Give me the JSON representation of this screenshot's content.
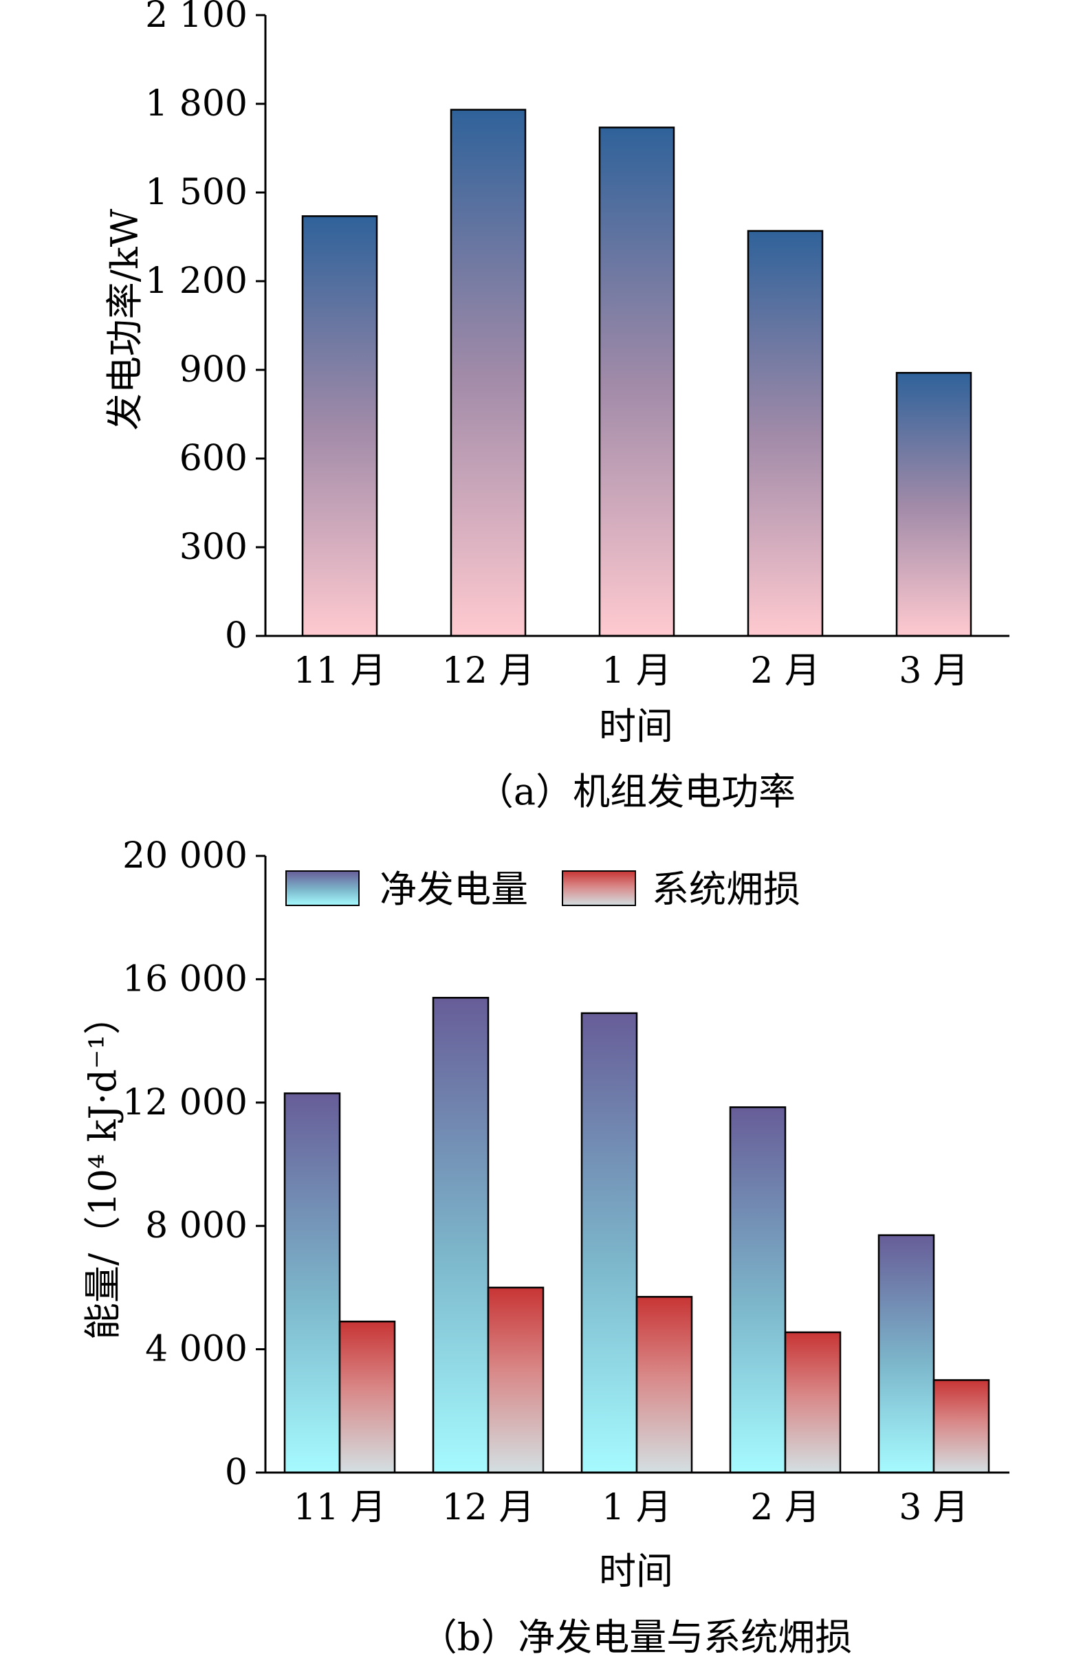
{
  "chart_data": [
    {
      "type": "bar",
      "title": "",
      "caption": "（a）机组发电功率",
      "xlabel": "时间",
      "ylabel": "发电功率/kW",
      "categories": [
        "11 月",
        "12 月",
        "1 月",
        "2 月",
        "3 月"
      ],
      "series": [
        {
          "values": [
            1420,
            1780,
            1720,
            1370,
            890
          ]
        }
      ],
      "ylim": [
        0,
        2100
      ],
      "yticks": [
        0,
        300,
        600,
        900,
        1200,
        1500,
        1800,
        2100
      ],
      "ytick_labels": [
        "0",
        "300",
        "600",
        "900",
        "1 200",
        "1 500",
        "1 800",
        "2 100"
      ],
      "colors": {
        "gradient_top": "#2f629a",
        "gradient_bottom": "#ffcad0"
      },
      "grid": false,
      "legend": "none"
    },
    {
      "type": "bar",
      "title": "",
      "caption": "（b）净发电量与系统㶲损",
      "xlabel": "时间",
      "ylabel": "能量/（10⁴ kJ·d⁻¹）",
      "categories": [
        "11 月",
        "12 月",
        "1 月",
        "2 月",
        "3 月"
      ],
      "series": [
        {
          "name": "净发电量",
          "values": [
            12300,
            15400,
            14900,
            11850,
            7700
          ],
          "color_top": "#675d98",
          "color_bottom": "#a6fbff"
        },
        {
          "name": "系统㶲损",
          "values": [
            4900,
            6000,
            5700,
            4550,
            3000
          ],
          "color_top": "#c83535",
          "color_bottom": "#d3dfe2"
        }
      ],
      "ylim": [
        0,
        20000
      ],
      "yticks": [
        0,
        4000,
        8000,
        12000,
        16000,
        20000
      ],
      "ytick_labels": [
        "0",
        "4 000",
        "8 000",
        "12 000",
        "16 000",
        "20 000"
      ],
      "grid": false,
      "legend": "top-left"
    }
  ]
}
